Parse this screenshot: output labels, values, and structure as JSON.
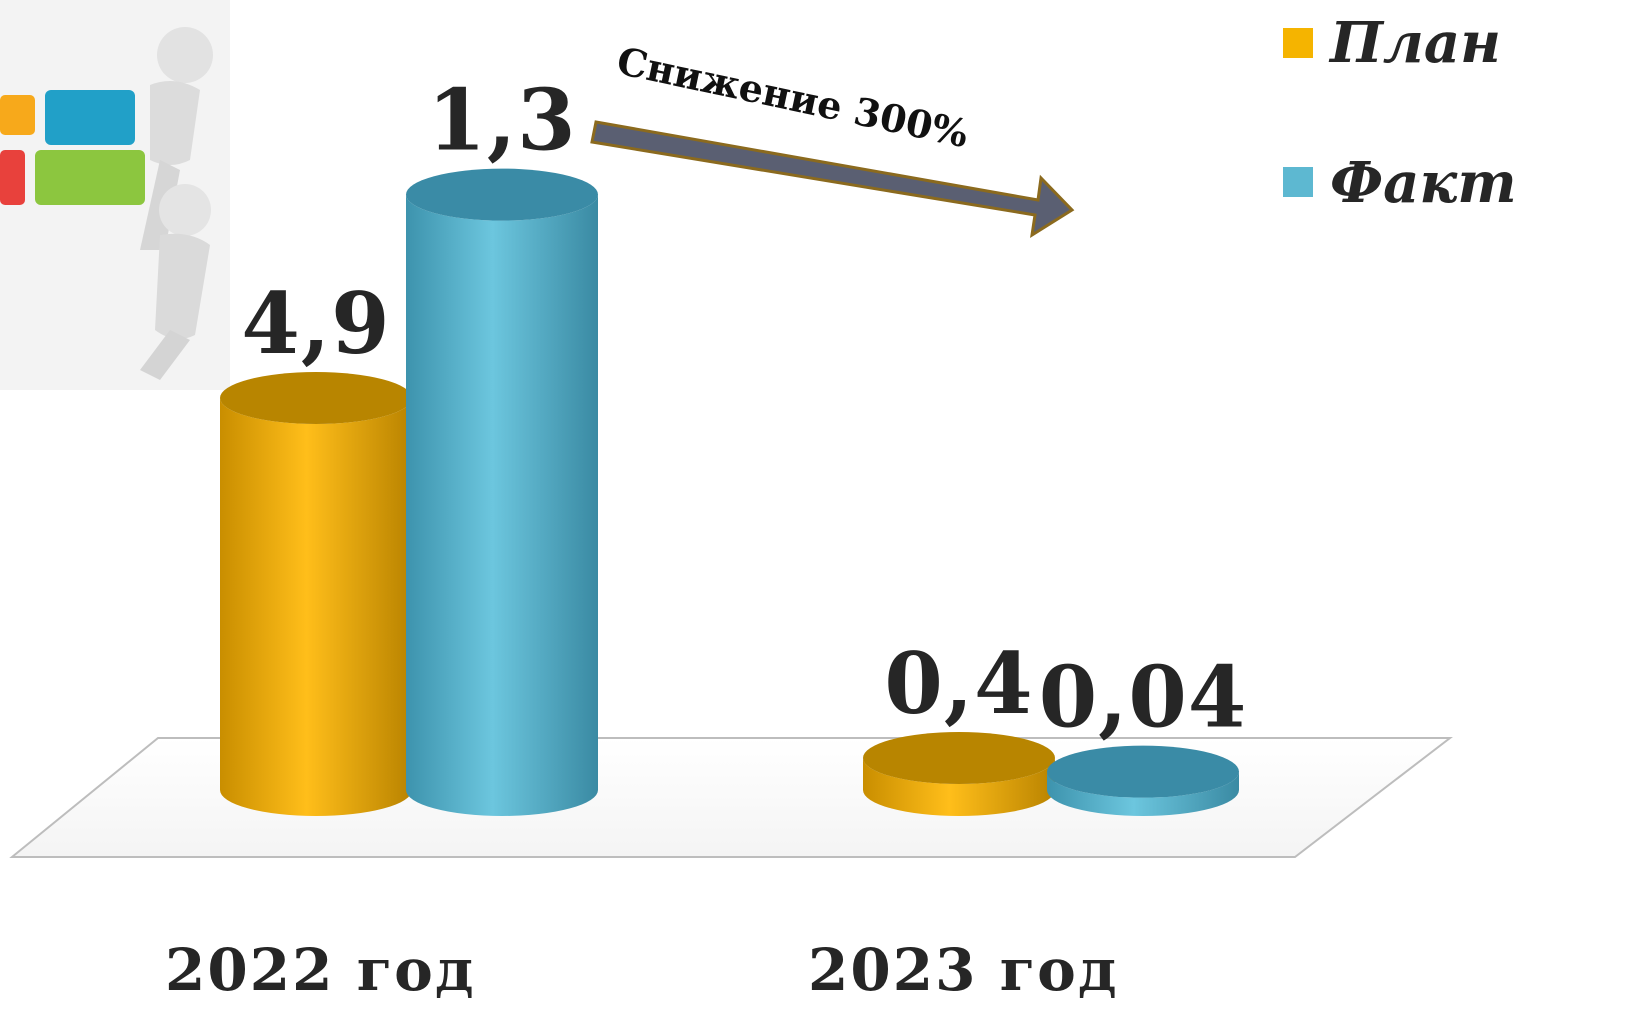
{
  "chart_data": {
    "type": "bar",
    "style": "3d-cylinder",
    "categories": [
      "2022 год",
      "2023 год"
    ],
    "series": [
      {
        "name": "План",
        "color": "#F5B400",
        "values": [
          4.9,
          0.4
        ],
        "labels": [
          "4,9",
          "0,4"
        ]
      },
      {
        "name": "Факт",
        "color": "#5DB8D1",
        "values": [
          1.3,
          0.04
        ],
        "labels": [
          "1,3",
          "0,04"
        ]
      }
    ],
    "annotation": "Снижение 300%",
    "legend_position": "top-right",
    "grid": false,
    "title": "",
    "xlabel": "",
    "ylabel": ""
  },
  "decor": {
    "illustration": "puzzle-figures-icon",
    "arrow": "trend-down-arrow-icon"
  }
}
